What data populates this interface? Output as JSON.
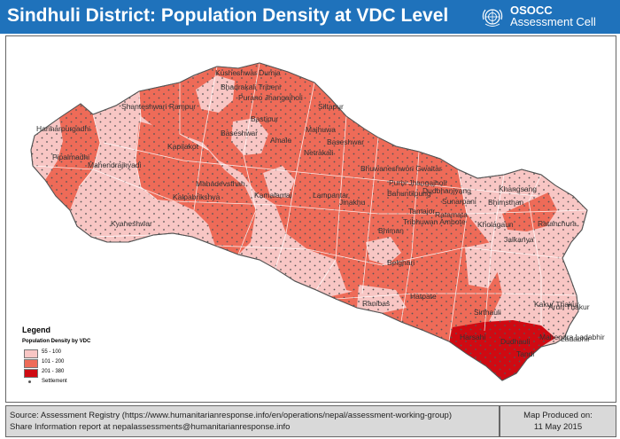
{
  "header": {
    "title": "Sindhuli District: Population Density at VDC Level",
    "logo_line1": "OSOCC",
    "logo_line2": "Assessment Cell",
    "logo_icon": "un-emblem-icon"
  },
  "legend": {
    "title": "Legend",
    "subtitle": "Population Density by VDC",
    "classes": [
      {
        "label": "55 - 100",
        "color": "#f8c6c4"
      },
      {
        "label": "101 - 200",
        "color": "#ee6b58"
      },
      {
        "label": "201 - 380",
        "color": "#cf0a12"
      }
    ],
    "settlement_label": "Settlement"
  },
  "vdc_labels": [
    "Kusheshwar Dumja",
    "Bhadrakali Tribeni",
    "Purano Jhangajholi",
    "Siltapur",
    "Shanteshwari Rampur",
    "Baseshwar",
    "Bastipur",
    "Hariharpurgadhi",
    "Amale",
    "Mahadevsthan",
    "Kapilakot",
    "Hatpate",
    "Purbi Jhangajholi",
    "Bhuwaneshwori Gwaltar",
    "Pipalmadhi",
    "Mahendrajhyadi",
    "Ladabhir",
    "Kamalamai",
    "Dudbhanjyang",
    "Ratanchura",
    "Ranibas",
    "Harsahi",
    "Dudhauli",
    "Tandi",
    "Mahendra Ladabhir",
    "Arun Thakur",
    "Sirthauli",
    "Belghari",
    "Jinakhu",
    "Kalpabrikshya",
    "Kyaneshwar",
    "Lampantar",
    "Majhuwa",
    "Khangsang",
    "Sunarpani",
    "Bahuntilpung",
    "Netrakali",
    "Jalkanya",
    "Ratamata",
    "Bhimsthan",
    "Kholagaun",
    "Baseshwar",
    "Kakur Thakur",
    "Tribhuwan Ambote",
    "Tamajor",
    "Bhiman"
  ],
  "footer": {
    "source_line1": "Source: Assessment Registry (https://www.humanitarianresponse.info/en/operations/nepal/assessment-working-group)",
    "source_line2": "Share Information report at nepalassessments@humanitarianresponse.info",
    "produced_label": "Map Produced on:",
    "produced_date": "11 May 2015"
  }
}
